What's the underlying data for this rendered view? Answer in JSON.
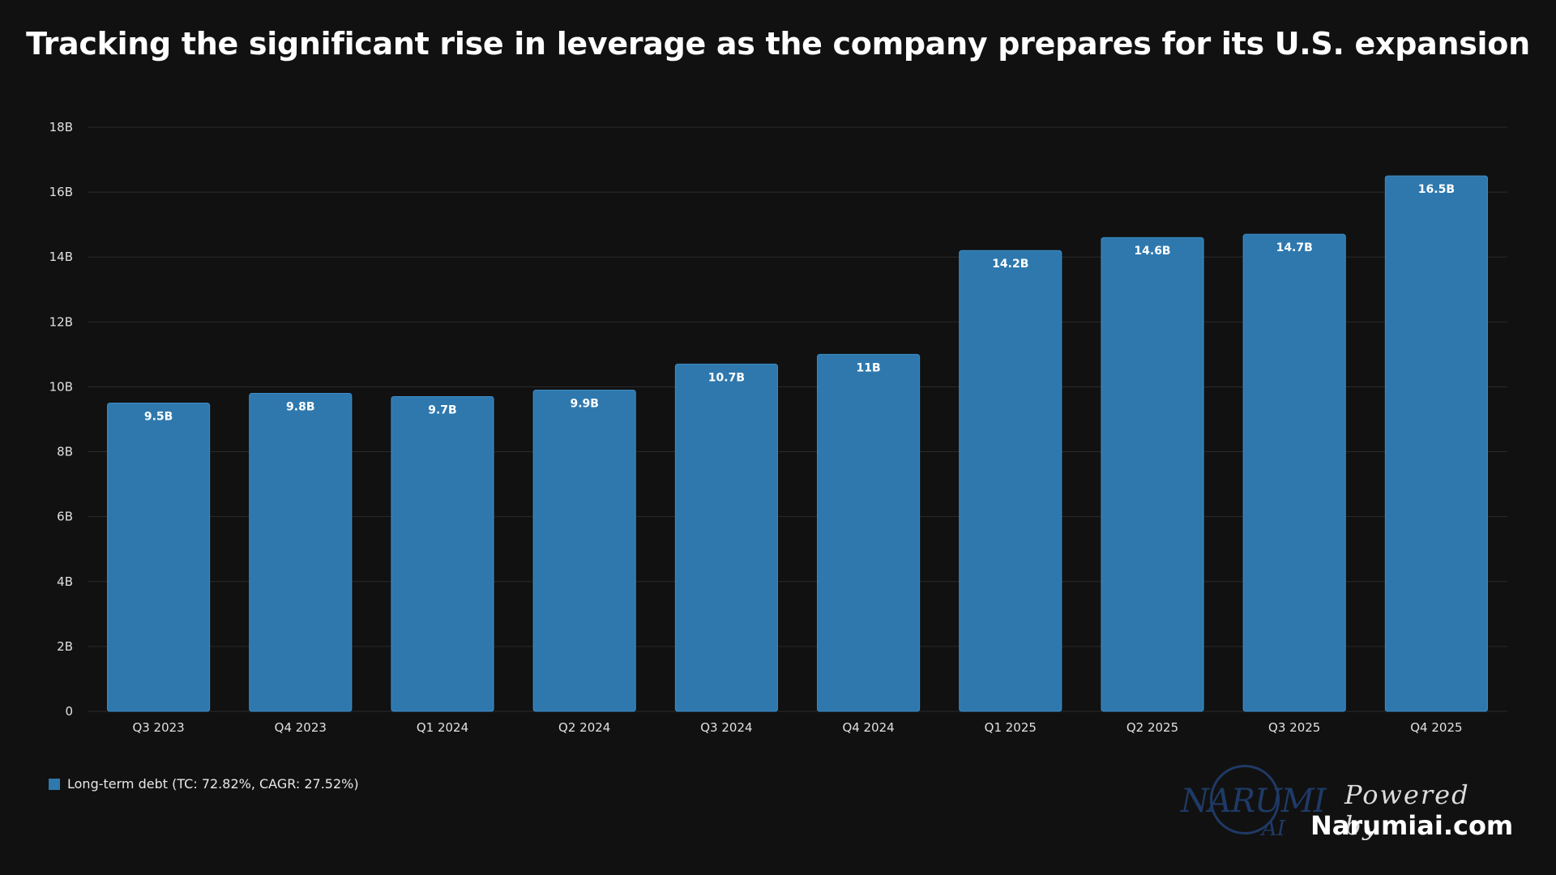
{
  "title": "Tracking the significant rise in leverage as the company prepares for its U.S. expansion",
  "legend": {
    "label": "Long-term debt (TC: 72.82%, CAGR: 27.52%)",
    "color": "#2e78ae"
  },
  "branding": {
    "logo_text": "NARUMI",
    "logo_sub": "AI",
    "powered_by": "Powered by",
    "site": "Narumiai.com"
  },
  "colors": {
    "background": "#111111",
    "bar": "#2e78ae",
    "grid": "#2a2a2a",
    "text": "#ffffff"
  },
  "chart_data": {
    "type": "bar",
    "title": "Tracking the significant rise in leverage as the company prepares for its U.S. expansion",
    "categories": [
      "Q3 2023",
      "Q4 2023",
      "Q1 2024",
      "Q2 2024",
      "Q3 2024",
      "Q4 2024",
      "Q1 2025",
      "Q2 2025",
      "Q3 2025",
      "Q4 2025"
    ],
    "series": [
      {
        "name": "Long-term debt (TC: 72.82%, CAGR: 27.52%)",
        "values": [
          9.5,
          9.8,
          9.7,
          9.9,
          10.7,
          11,
          14.2,
          14.6,
          14.7,
          16.5
        ],
        "data_labels": [
          "9.5B",
          "9.8B",
          "9.7B",
          "9.9B",
          "10.7B",
          "11B",
          "14.2B",
          "14.6B",
          "14.7B",
          "16.5B"
        ]
      }
    ],
    "ylim": [
      0,
      18
    ],
    "yticks": [
      0,
      2,
      4,
      6,
      8,
      10,
      12,
      14,
      16,
      18
    ],
    "ytick_labels": [
      "0",
      "2B",
      "4B",
      "6B",
      "8B",
      "10B",
      "12B",
      "14B",
      "16B",
      "18B"
    ],
    "xlabel": "",
    "ylabel": "",
    "grid": true,
    "legend_position": "bottom-left"
  }
}
